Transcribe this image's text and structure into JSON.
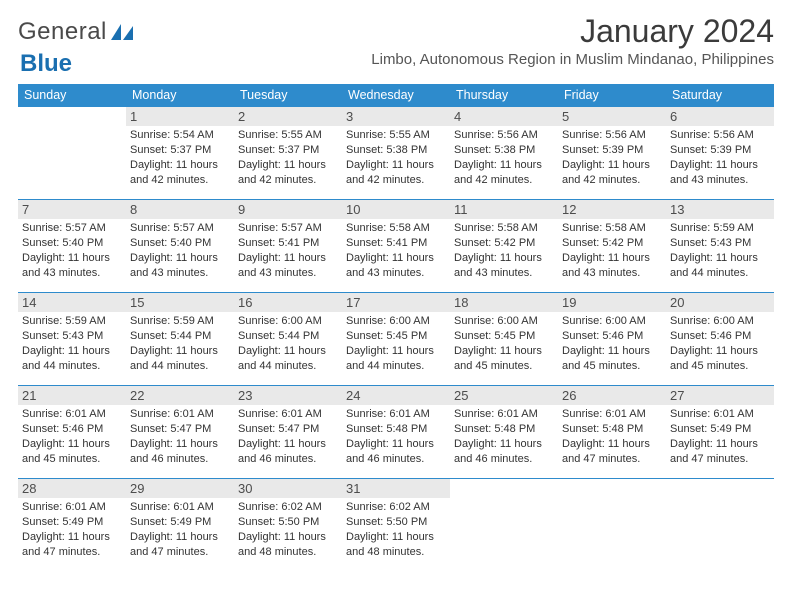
{
  "brand": {
    "word1": "General",
    "word2": "Blue"
  },
  "header": {
    "month_title": "January 2024",
    "location": "Limbo, Autonomous Region in Muslim Mindanao, Philippines"
  },
  "colors": {
    "header_bg": "#2e8bcc",
    "header_text": "#ffffff",
    "daynum_bg": "#e9e9e9",
    "row_border": "#2e8bcc",
    "logo_blue": "#1a6fb0"
  },
  "weekdays": [
    "Sunday",
    "Monday",
    "Tuesday",
    "Wednesday",
    "Thursday",
    "Friday",
    "Saturday"
  ],
  "weeks": [
    [
      null,
      {
        "n": "1",
        "sr": "Sunrise: 5:54 AM",
        "ss": "Sunset: 5:37 PM",
        "dl": "Daylight: 11 hours and 42 minutes."
      },
      {
        "n": "2",
        "sr": "Sunrise: 5:55 AM",
        "ss": "Sunset: 5:37 PM",
        "dl": "Daylight: 11 hours and 42 minutes."
      },
      {
        "n": "3",
        "sr": "Sunrise: 5:55 AM",
        "ss": "Sunset: 5:38 PM",
        "dl": "Daylight: 11 hours and 42 minutes."
      },
      {
        "n": "4",
        "sr": "Sunrise: 5:56 AM",
        "ss": "Sunset: 5:38 PM",
        "dl": "Daylight: 11 hours and 42 minutes."
      },
      {
        "n": "5",
        "sr": "Sunrise: 5:56 AM",
        "ss": "Sunset: 5:39 PM",
        "dl": "Daylight: 11 hours and 42 minutes."
      },
      {
        "n": "6",
        "sr": "Sunrise: 5:56 AM",
        "ss": "Sunset: 5:39 PM",
        "dl": "Daylight: 11 hours and 43 minutes."
      }
    ],
    [
      {
        "n": "7",
        "sr": "Sunrise: 5:57 AM",
        "ss": "Sunset: 5:40 PM",
        "dl": "Daylight: 11 hours and 43 minutes."
      },
      {
        "n": "8",
        "sr": "Sunrise: 5:57 AM",
        "ss": "Sunset: 5:40 PM",
        "dl": "Daylight: 11 hours and 43 minutes."
      },
      {
        "n": "9",
        "sr": "Sunrise: 5:57 AM",
        "ss": "Sunset: 5:41 PM",
        "dl": "Daylight: 11 hours and 43 minutes."
      },
      {
        "n": "10",
        "sr": "Sunrise: 5:58 AM",
        "ss": "Sunset: 5:41 PM",
        "dl": "Daylight: 11 hours and 43 minutes."
      },
      {
        "n": "11",
        "sr": "Sunrise: 5:58 AM",
        "ss": "Sunset: 5:42 PM",
        "dl": "Daylight: 11 hours and 43 minutes."
      },
      {
        "n": "12",
        "sr": "Sunrise: 5:58 AM",
        "ss": "Sunset: 5:42 PM",
        "dl": "Daylight: 11 hours and 43 minutes."
      },
      {
        "n": "13",
        "sr": "Sunrise: 5:59 AM",
        "ss": "Sunset: 5:43 PM",
        "dl": "Daylight: 11 hours and 44 minutes."
      }
    ],
    [
      {
        "n": "14",
        "sr": "Sunrise: 5:59 AM",
        "ss": "Sunset: 5:43 PM",
        "dl": "Daylight: 11 hours and 44 minutes."
      },
      {
        "n": "15",
        "sr": "Sunrise: 5:59 AM",
        "ss": "Sunset: 5:44 PM",
        "dl": "Daylight: 11 hours and 44 minutes."
      },
      {
        "n": "16",
        "sr": "Sunrise: 6:00 AM",
        "ss": "Sunset: 5:44 PM",
        "dl": "Daylight: 11 hours and 44 minutes."
      },
      {
        "n": "17",
        "sr": "Sunrise: 6:00 AM",
        "ss": "Sunset: 5:45 PM",
        "dl": "Daylight: 11 hours and 44 minutes."
      },
      {
        "n": "18",
        "sr": "Sunrise: 6:00 AM",
        "ss": "Sunset: 5:45 PM",
        "dl": "Daylight: 11 hours and 45 minutes."
      },
      {
        "n": "19",
        "sr": "Sunrise: 6:00 AM",
        "ss": "Sunset: 5:46 PM",
        "dl": "Daylight: 11 hours and 45 minutes."
      },
      {
        "n": "20",
        "sr": "Sunrise: 6:00 AM",
        "ss": "Sunset: 5:46 PM",
        "dl": "Daylight: 11 hours and 45 minutes."
      }
    ],
    [
      {
        "n": "21",
        "sr": "Sunrise: 6:01 AM",
        "ss": "Sunset: 5:46 PM",
        "dl": "Daylight: 11 hours and 45 minutes."
      },
      {
        "n": "22",
        "sr": "Sunrise: 6:01 AM",
        "ss": "Sunset: 5:47 PM",
        "dl": "Daylight: 11 hours and 46 minutes."
      },
      {
        "n": "23",
        "sr": "Sunrise: 6:01 AM",
        "ss": "Sunset: 5:47 PM",
        "dl": "Daylight: 11 hours and 46 minutes."
      },
      {
        "n": "24",
        "sr": "Sunrise: 6:01 AM",
        "ss": "Sunset: 5:48 PM",
        "dl": "Daylight: 11 hours and 46 minutes."
      },
      {
        "n": "25",
        "sr": "Sunrise: 6:01 AM",
        "ss": "Sunset: 5:48 PM",
        "dl": "Daylight: 11 hours and 46 minutes."
      },
      {
        "n": "26",
        "sr": "Sunrise: 6:01 AM",
        "ss": "Sunset: 5:48 PM",
        "dl": "Daylight: 11 hours and 47 minutes."
      },
      {
        "n": "27",
        "sr": "Sunrise: 6:01 AM",
        "ss": "Sunset: 5:49 PM",
        "dl": "Daylight: 11 hours and 47 minutes."
      }
    ],
    [
      {
        "n": "28",
        "sr": "Sunrise: 6:01 AM",
        "ss": "Sunset: 5:49 PM",
        "dl": "Daylight: 11 hours and 47 minutes."
      },
      {
        "n": "29",
        "sr": "Sunrise: 6:01 AM",
        "ss": "Sunset: 5:49 PM",
        "dl": "Daylight: 11 hours and 47 minutes."
      },
      {
        "n": "30",
        "sr": "Sunrise: 6:02 AM",
        "ss": "Sunset: 5:50 PM",
        "dl": "Daylight: 11 hours and 48 minutes."
      },
      {
        "n": "31",
        "sr": "Sunrise: 6:02 AM",
        "ss": "Sunset: 5:50 PM",
        "dl": "Daylight: 11 hours and 48 minutes."
      },
      null,
      null,
      null
    ]
  ]
}
